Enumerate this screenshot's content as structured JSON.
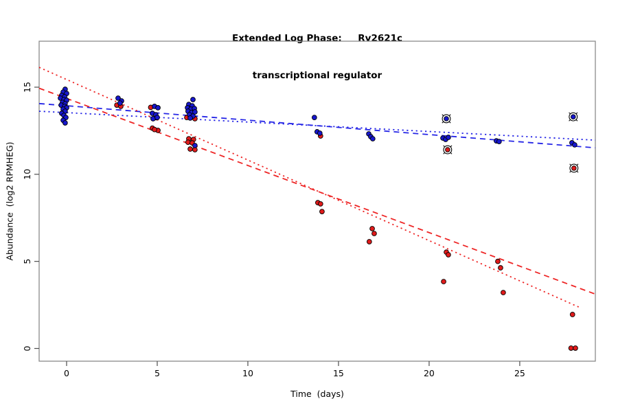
{
  "window": {
    "background": "#ffffff"
  },
  "chart_data": {
    "type": "scatter",
    "title_line1": "Extended Log Phase:     Rv2621c",
    "title_line2": "transcriptional regulator",
    "xlabel": "Time  (days)",
    "ylabel": "Abundance  (log2 RPMHEG)",
    "xlim": [
      -1.515,
      29.17
    ],
    "ylim": [
      -0.73,
      17.64
    ],
    "xticks": [
      0,
      5,
      10,
      15,
      20,
      25
    ],
    "yticks": [
      0,
      5,
      10,
      15
    ],
    "grid": false,
    "legend": "none",
    "colors": {
      "blue_point_fill": "#1717cf",
      "red_point_fill": "#e11b1b",
      "point_stroke": "#000000",
      "blue_line": "#2525e6",
      "red_line": "#ee2525",
      "frame": "#8a8a8a",
      "tick": "#4d4d4d"
    },
    "series": [
      {
        "name": "red-points",
        "type": "points",
        "color": "#e11b1b",
        "points": [
          [
            2.77,
            13.97
          ],
          [
            2.99,
            13.9
          ],
          [
            4.64,
            13.84
          ],
          [
            4.95,
            13.25
          ],
          [
            4.73,
            12.65
          ],
          [
            5.04,
            12.52
          ],
          [
            4.85,
            12.57
          ],
          [
            6.63,
            13.26
          ],
          [
            7.08,
            13.19
          ],
          [
            6.74,
            12.04
          ],
          [
            7.0,
            12.0
          ],
          [
            6.7,
            11.84
          ],
          [
            6.93,
            11.8
          ],
          [
            6.82,
            11.45
          ],
          [
            7.08,
            11.41
          ],
          [
            14.01,
            12.2
          ],
          [
            13.86,
            8.37
          ],
          [
            14.01,
            8.3
          ],
          [
            14.09,
            7.86
          ],
          [
            16.86,
            6.88
          ],
          [
            16.97,
            6.6
          ],
          [
            16.7,
            6.13
          ],
          [
            20.95,
            5.53
          ],
          [
            21.06,
            5.38
          ],
          [
            20.8,
            3.84
          ],
          [
            23.79,
            5.0
          ],
          [
            23.94,
            4.63
          ],
          [
            24.09,
            3.21
          ],
          [
            27.91,
            1.95
          ],
          [
            27.83,
            0.02
          ],
          [
            28.07,
            0.02
          ]
        ]
      },
      {
        "name": "blue-points",
        "type": "points",
        "color": "#1717cf",
        "points": [
          [
            -0.08,
            14.88
          ],
          [
            -0.19,
            14.72
          ],
          [
            0.0,
            14.64
          ],
          [
            -0.27,
            14.53
          ],
          [
            -0.11,
            14.45
          ],
          [
            -0.34,
            14.37
          ],
          [
            -0.15,
            14.29
          ],
          [
            0.0,
            14.25
          ],
          [
            -0.23,
            14.13
          ],
          [
            -0.08,
            14.05
          ],
          [
            -0.3,
            13.97
          ],
          [
            -0.11,
            13.9
          ],
          [
            0.0,
            13.82
          ],
          [
            -0.19,
            13.74
          ],
          [
            -0.08,
            13.62
          ],
          [
            -0.27,
            13.5
          ],
          [
            -0.15,
            13.38
          ],
          [
            -0.04,
            13.26
          ],
          [
            -0.19,
            13.1
          ],
          [
            -0.08,
            12.95
          ],
          [
            2.84,
            14.37
          ],
          [
            3.03,
            14.21
          ],
          [
            2.95,
            14.09
          ],
          [
            4.85,
            13.9
          ],
          [
            5.04,
            13.82
          ],
          [
            4.73,
            13.5
          ],
          [
            4.92,
            13.42
          ],
          [
            4.77,
            13.19
          ],
          [
            5.0,
            13.26
          ],
          [
            6.97,
            14.29
          ],
          [
            6.74,
            14.01
          ],
          [
            6.93,
            13.93
          ],
          [
            6.67,
            13.82
          ],
          [
            6.86,
            13.74
          ],
          [
            7.05,
            13.78
          ],
          [
            6.7,
            13.62
          ],
          [
            6.89,
            13.54
          ],
          [
            7.08,
            13.58
          ],
          [
            6.78,
            13.42
          ],
          [
            6.97,
            13.34
          ],
          [
            6.82,
            13.23
          ],
          [
            7.08,
            11.65
          ],
          [
            13.67,
            13.26
          ],
          [
            13.82,
            12.44
          ],
          [
            13.97,
            12.36
          ],
          [
            16.67,
            12.32
          ],
          [
            16.78,
            12.16
          ],
          [
            16.89,
            12.04
          ],
          [
            20.76,
            12.08
          ],
          [
            20.91,
            12.0
          ],
          [
            21.06,
            12.12
          ],
          [
            23.71,
            11.92
          ],
          [
            23.86,
            11.88
          ],
          [
            27.88,
            11.81
          ],
          [
            28.03,
            11.69
          ]
        ]
      },
      {
        "name": "red-points-flagged",
        "type": "circled-points",
        "color": "#e11b1b",
        "points": [
          [
            21.02,
            11.41
          ],
          [
            27.99,
            10.35
          ]
        ]
      },
      {
        "name": "blue-points-flagged",
        "type": "circled-points",
        "color": "#1717cf",
        "points": [
          [
            20.95,
            13.19
          ],
          [
            27.95,
            13.3
          ]
        ]
      }
    ],
    "trend_lines": [
      {
        "name": "blue-dashed",
        "color": "#2525e6",
        "dash": "longdash",
        "x1": -1.515,
        "y1": 14.06,
        "x2": 29.17,
        "y2": 11.52
      },
      {
        "name": "blue-dotted",
        "color": "#2525e6",
        "dash": "dotted",
        "x1": -1.515,
        "y1": 13.62,
        "x2": 29.17,
        "y2": 11.96
      },
      {
        "name": "red-dashed",
        "color": "#ee2525",
        "dash": "longdash",
        "x1": -1.515,
        "y1": 14.94,
        "x2": 29.17,
        "y2": 3.12
      },
      {
        "name": "red-dotted",
        "color": "#ee2525",
        "dash": "dotted",
        "x1": -1.515,
        "y1": 16.14,
        "x2": 28.25,
        "y2": 2.38
      }
    ]
  }
}
